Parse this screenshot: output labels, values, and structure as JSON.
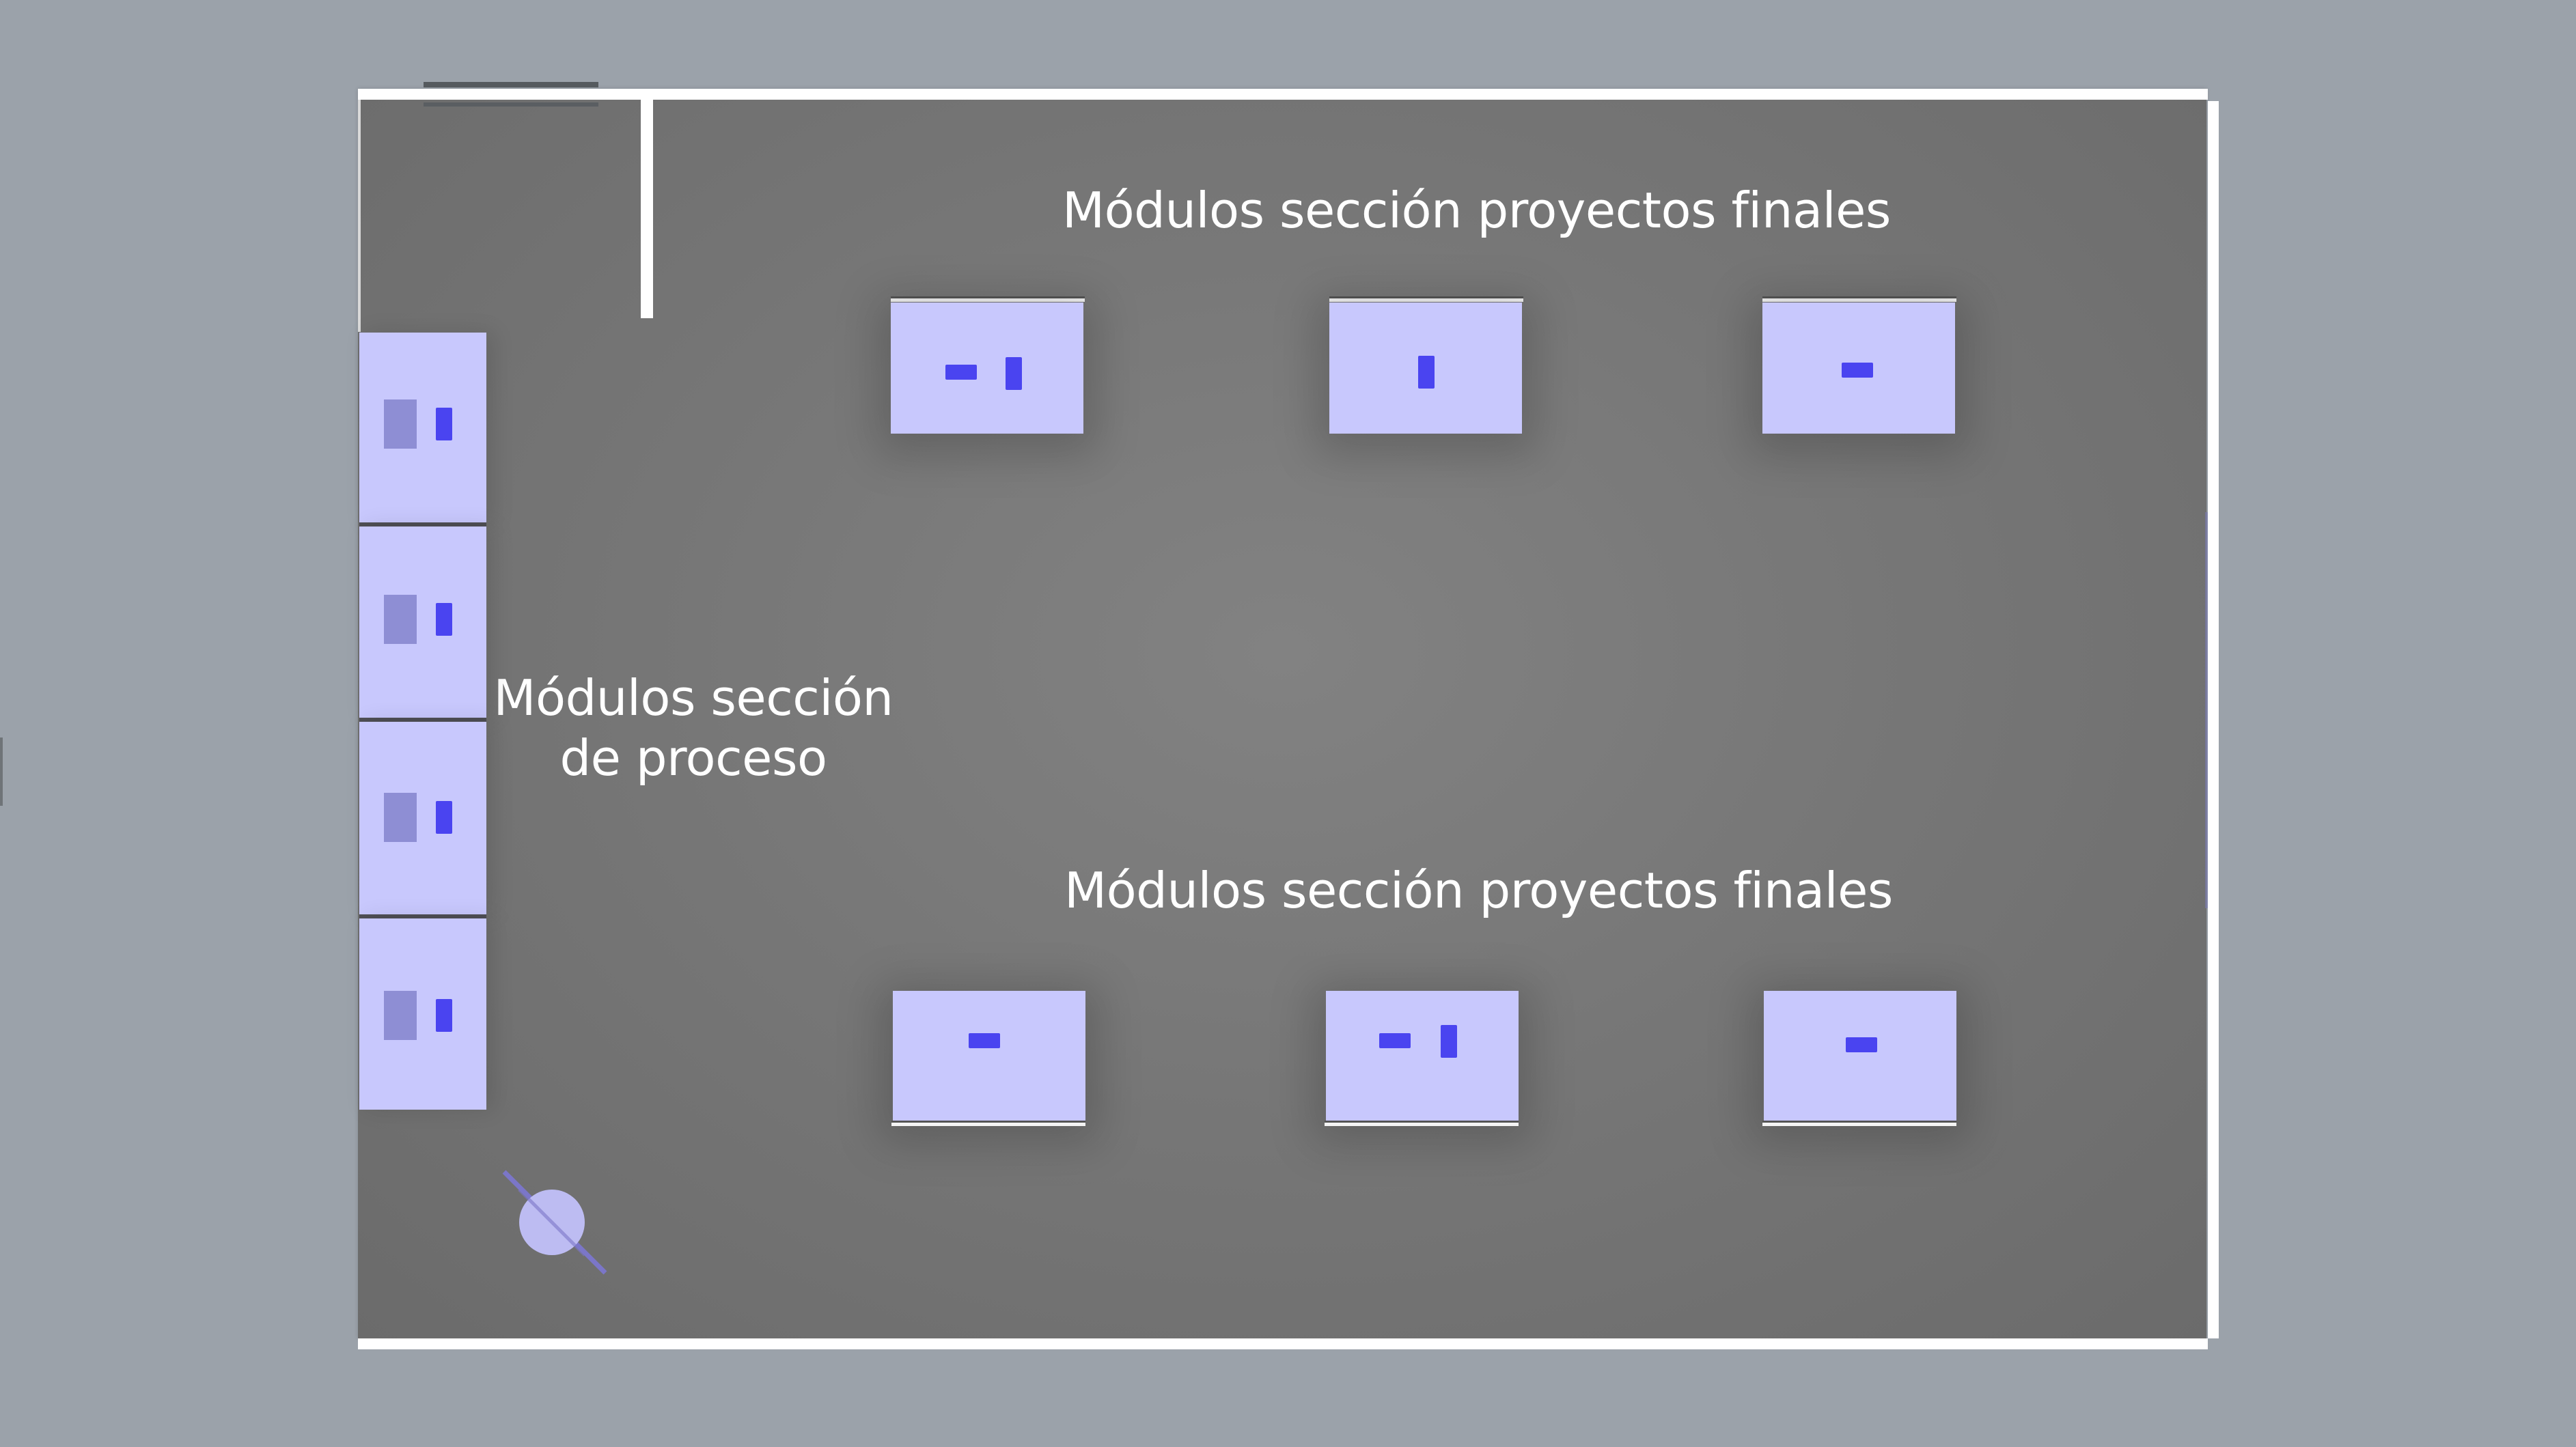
{
  "labels": {
    "top_section": "Módulos sección proyectos finales",
    "bottom_section": "Módulos sección proyectos finales",
    "process_section_line1": "Módulos sección",
    "process_section_line2": "de proceso"
  },
  "colors": {
    "background": "#9ba2aa",
    "floor": "#777777",
    "wall": "#ffffff",
    "module": "#c8c8fd",
    "object": "#4a44f0",
    "panel": "#8e8ed4"
  },
  "icons": {
    "entry_marker": "turnstile-icon"
  }
}
